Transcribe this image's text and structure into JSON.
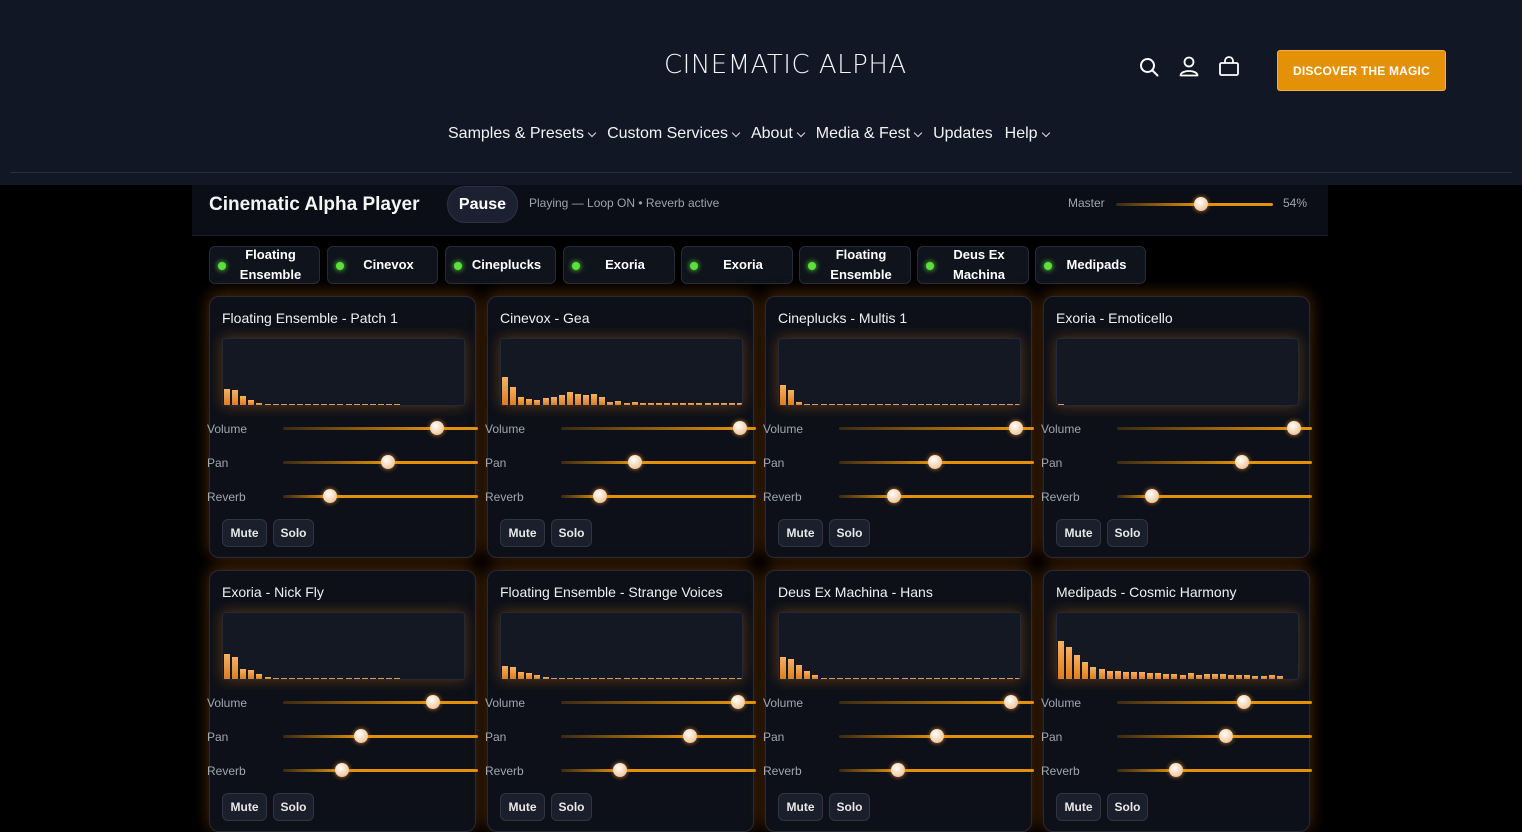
{
  "header": {
    "logo": "CINEMATIC ALPHA",
    "cta": "DISCOVER THE MAGIC",
    "icons": [
      "search-icon",
      "account-icon",
      "cart-icon"
    ],
    "nav": [
      {
        "label": "Samples & Presets",
        "dropdown": true
      },
      {
        "label": "Custom Services",
        "dropdown": true
      },
      {
        "label": "About",
        "dropdown": true
      },
      {
        "label": "Media & Fest",
        "dropdown": true
      },
      {
        "label": "Updates",
        "dropdown": false
      },
      {
        "label": "Help",
        "dropdown": true
      }
    ]
  },
  "player": {
    "title": "Cinematic Alpha Player",
    "pause_label": "Pause",
    "status": "Playing — Loop ON • Reverb active",
    "master_label": "Master",
    "master_value": 0.54,
    "master_pct": "54%"
  },
  "chips": [
    {
      "label": "Floating Ensemble"
    },
    {
      "label": "Cinevox"
    },
    {
      "label": "Cineplucks"
    },
    {
      "label": "Exoria"
    },
    {
      "label": "Exoria"
    },
    {
      "label": "Floating Ensemble"
    },
    {
      "label": "Deus Ex Machina"
    },
    {
      "label": "Medipads"
    }
  ],
  "labels": {
    "volume": "Volume",
    "pan": "Pan",
    "reverb": "Reverb",
    "mute": "Mute",
    "solo": "Solo"
  },
  "colors": {
    "accent": "#e39208",
    "led": "#5de03c",
    "background": "#000000",
    "header": "#121726"
  },
  "cards": [
    {
      "title": "Floating Ensemble - Patch 1",
      "volume": 0.79,
      "pan": 0.54,
      "reverb": 0.24,
      "spectrum": [
        16,
        15,
        9,
        5,
        2,
        1,
        1,
        1,
        1,
        1,
        1,
        1,
        1,
        1,
        1,
        1,
        1,
        1,
        1,
        1,
        1,
        1
      ]
    },
    {
      "title": "Cinevox - Gea",
      "volume": 0.92,
      "pan": 0.38,
      "reverb": 0.2,
      "spectrum": [
        28,
        18,
        8,
        6,
        5,
        7,
        8,
        10,
        13,
        11,
        10,
        11,
        8,
        3,
        4,
        2,
        3,
        2,
        2,
        2,
        2,
        2,
        2,
        2,
        2,
        2,
        2,
        2,
        2,
        2,
        2
      ]
    },
    {
      "title": "Cineplucks - Multis 1",
      "volume": 0.91,
      "pan": 0.49,
      "reverb": 0.28,
      "spectrum": [
        20,
        15,
        3,
        1,
        1,
        1,
        1,
        1,
        1,
        1,
        1,
        1,
        1,
        1,
        1,
        1,
        1,
        1,
        1,
        1,
        1,
        1,
        1,
        1,
        1,
        1,
        1,
        1,
        1,
        1,
        1
      ]
    },
    {
      "title": "Exoria - Emoticello",
      "volume": 0.91,
      "pan": 0.64,
      "reverb": 0.18,
      "spectrum": [
        1
      ]
    },
    {
      "title": "Exoria - Nick Fly",
      "volume": 0.77,
      "pan": 0.4,
      "reverb": 0.3,
      "spectrum": [
        25,
        22,
        10,
        9,
        5,
        2,
        1,
        1,
        1,
        1,
        1,
        1,
        1,
        1,
        1,
        1,
        1,
        1,
        1,
        1,
        1,
        1
      ]
    },
    {
      "title": "Floating Ensemble - Strange Voices",
      "volume": 0.91,
      "pan": 0.66,
      "reverb": 0.3,
      "spectrum": [
        13,
        12,
        7,
        6,
        4,
        2,
        1,
        1,
        1,
        1,
        1,
        1,
        1,
        1,
        1,
        1,
        1,
        1,
        1,
        1,
        1,
        1,
        1,
        1,
        1,
        1,
        1,
        1,
        1,
        1
      ]
    },
    {
      "title": "Deus Ex Machina - Hans",
      "volume": 0.88,
      "pan": 0.5,
      "reverb": 0.3,
      "spectrum": [
        22,
        20,
        14,
        8,
        4,
        1,
        1,
        1,
        1,
        1,
        1,
        1,
        1,
        1,
        1,
        1,
        1,
        1,
        1,
        1,
        1,
        1,
        1,
        1,
        1,
        1,
        1,
        1,
        1,
        1
      ]
    },
    {
      "title": "Medipads - Cosmic Harmony",
      "volume": 0.65,
      "pan": 0.56,
      "reverb": 0.3,
      "spectrum": [
        38,
        32,
        24,
        17,
        12,
        10,
        8,
        8,
        7,
        7,
        7,
        6,
        6,
        5,
        5,
        4,
        6,
        4,
        5,
        5,
        5,
        4,
        4,
        4,
        3,
        3,
        4,
        3
      ]
    }
  ]
}
